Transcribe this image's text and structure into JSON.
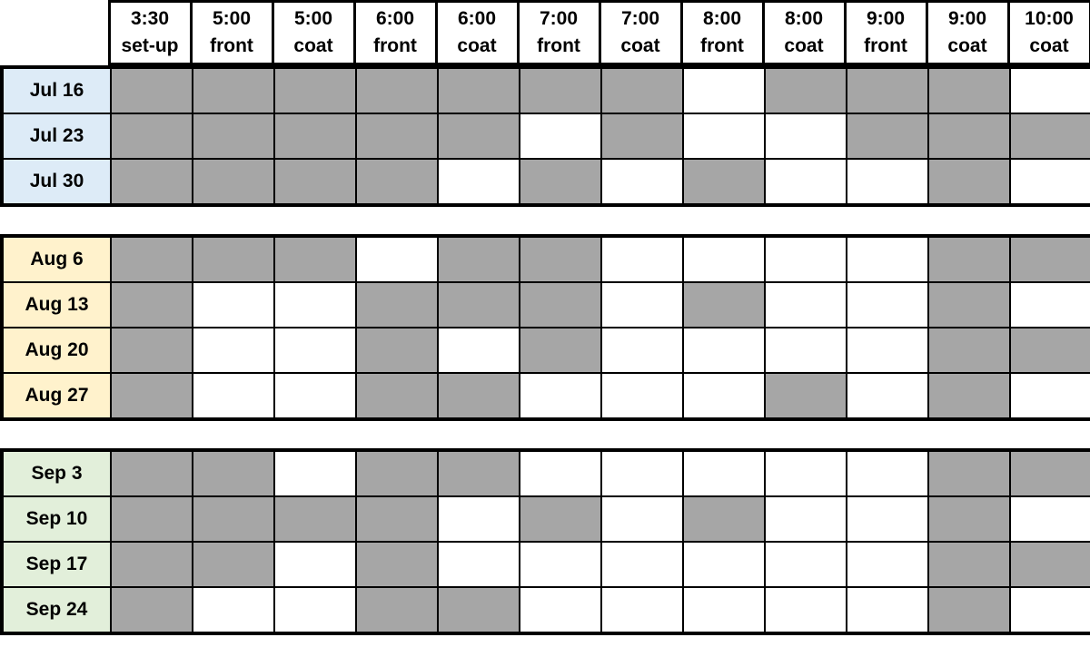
{
  "columns": [
    {
      "time": "3:30",
      "role": "set-up"
    },
    {
      "time": "5:00",
      "role": "front"
    },
    {
      "time": "5:00",
      "role": "coat"
    },
    {
      "time": "6:00",
      "role": "front"
    },
    {
      "time": "6:00",
      "role": "coat"
    },
    {
      "time": "7:00",
      "role": "front"
    },
    {
      "time": "7:00",
      "role": "coat"
    },
    {
      "time": "8:00",
      "role": "front"
    },
    {
      "time": "8:00",
      "role": "coat"
    },
    {
      "time": "9:00",
      "role": "front"
    },
    {
      "time": "9:00",
      "role": "coat"
    },
    {
      "time": "10:00",
      "role": "coat"
    }
  ],
  "groups": [
    {
      "id": "july",
      "label_bg": "#DDEBF7",
      "rows": [
        {
          "label": "Jul 16",
          "cells": [
            1,
            1,
            1,
            1,
            1,
            1,
            1,
            0,
            1,
            1,
            1,
            0
          ]
        },
        {
          "label": "Jul 23",
          "cells": [
            1,
            1,
            1,
            1,
            1,
            0,
            1,
            0,
            0,
            1,
            1,
            1
          ]
        },
        {
          "label": "Jul 30",
          "cells": [
            1,
            1,
            1,
            1,
            0,
            1,
            0,
            1,
            0,
            0,
            1,
            0
          ]
        }
      ]
    },
    {
      "id": "august",
      "label_bg": "#FFF2CC",
      "rows": [
        {
          "label": "Aug 6",
          "cells": [
            1,
            1,
            1,
            0,
            1,
            1,
            0,
            0,
            0,
            0,
            1,
            1
          ]
        },
        {
          "label": "Aug 13",
          "cells": [
            1,
            0,
            0,
            1,
            1,
            1,
            0,
            1,
            0,
            0,
            1,
            0
          ]
        },
        {
          "label": "Aug 20",
          "cells": [
            1,
            0,
            0,
            1,
            0,
            1,
            0,
            0,
            0,
            0,
            1,
            1
          ]
        },
        {
          "label": "Aug 27",
          "cells": [
            1,
            0,
            0,
            1,
            1,
            0,
            0,
            0,
            1,
            0,
            1,
            0
          ]
        }
      ]
    },
    {
      "id": "september",
      "label_bg": "#E2EFDA",
      "rows": [
        {
          "label": "Sep 3",
          "cells": [
            1,
            1,
            0,
            1,
            1,
            0,
            0,
            0,
            0,
            0,
            1,
            1
          ]
        },
        {
          "label": "Sep 10",
          "cells": [
            1,
            1,
            1,
            1,
            0,
            1,
            0,
            1,
            0,
            0,
            1,
            0
          ]
        },
        {
          "label": "Sep 17",
          "cells": [
            1,
            1,
            0,
            1,
            0,
            0,
            0,
            0,
            0,
            0,
            1,
            1
          ]
        },
        {
          "label": "Sep 24",
          "cells": [
            1,
            0,
            0,
            1,
            1,
            0,
            0,
            0,
            0,
            0,
            1,
            0
          ]
        }
      ]
    }
  ],
  "colors": {
    "filled_cell": "#A6A6A6",
    "empty_cell": "#FFFFFF",
    "border": "#000000",
    "july_label_bg": "#DDEBF7",
    "august_label_bg": "#FFF2CC",
    "september_label_bg": "#E2EFDA"
  },
  "cell_states": {
    "1": "filled",
    "0": "empty"
  }
}
